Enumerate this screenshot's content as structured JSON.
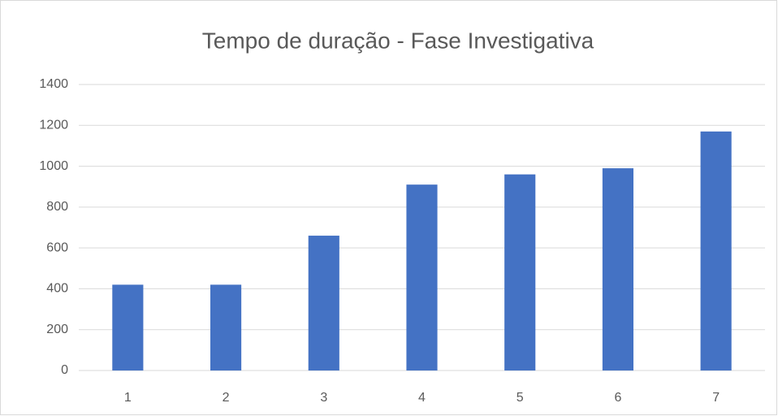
{
  "chart_data": {
    "type": "bar",
    "title": "Tempo de duração - Fase Investigativa",
    "categories": [
      "1",
      "2",
      "3",
      "4",
      "5",
      "6",
      "7"
    ],
    "values": [
      420,
      420,
      660,
      910,
      960,
      990,
      1170
    ],
    "color": "#4472c4",
    "ylim": [
      0,
      1400
    ],
    "yticks": [
      0,
      200,
      400,
      600,
      800,
      1000,
      1200,
      1400
    ],
    "grid": true
  }
}
